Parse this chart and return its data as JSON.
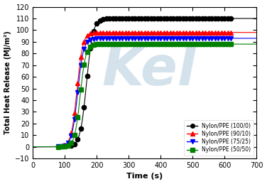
{
  "title": "",
  "xlabel": "Time (s)",
  "ylabel": "Total Heat Release (MJ/m²)",
  "xlim": [
    0,
    700
  ],
  "ylim": [
    -10,
    120
  ],
  "xticks": [
    0,
    100,
    200,
    300,
    400,
    500,
    600,
    700
  ],
  "yticks": [
    -10,
    0,
    10,
    20,
    30,
    40,
    50,
    60,
    70,
    80,
    90,
    100,
    110,
    120
  ],
  "series": [
    {
      "label": "Nylon/PPE (100/0)",
      "color": "black",
      "marker": "o",
      "x_marker_start": 120,
      "x_end": 620,
      "y_plateau": 110,
      "sigmoid_mid": 168,
      "sigmoid_k": 0.1
    },
    {
      "label": "Nylon/PPE (90/10)",
      "color": "red",
      "marker": "^",
      "x_marker_start": 80,
      "x_end": 620,
      "y_plateau": 98,
      "sigmoid_mid": 138,
      "sigmoid_k": 0.11
    },
    {
      "label": "Nylon/PPE (75/25)",
      "color": "blue",
      "marker": "v",
      "x_marker_start": 80,
      "x_end": 620,
      "y_plateau": 93,
      "sigmoid_mid": 140,
      "sigmoid_k": 0.11
    },
    {
      "label": "Nylon/PPE (50/50)",
      "color": "green",
      "marker": "s",
      "x_marker_start": 80,
      "x_end": 620,
      "y_plateau": 88,
      "sigmoid_mid": 148,
      "sigmoid_k": 0.115
    }
  ],
  "legend_loc": "lower right",
  "background_color": "#ffffff",
  "watermark_color": "#b8cfe0",
  "marker_every": 10,
  "marker_size": 4.5
}
